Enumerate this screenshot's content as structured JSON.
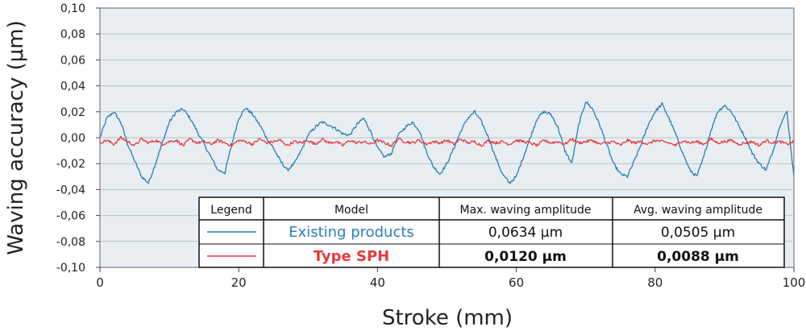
{
  "chart_data": {
    "type": "line",
    "xlabel": "Stroke (mm)",
    "ylabel": "Waving accuracy (μm)",
    "xlim": [
      0,
      100
    ],
    "ylim": [
      -0.1,
      0.1
    ],
    "x_ticks": [
      "0",
      "20",
      "40",
      "60",
      "80",
      "100"
    ],
    "y_ticks": [
      "0,10",
      "0,08",
      "0,06",
      "0,04",
      "0,02",
      "0,00",
      "-0,02",
      "-0,04",
      "-0,06",
      "-0,08",
      "-0,10"
    ],
    "grid": true,
    "series": [
      {
        "name": "Existing products",
        "color": "#2a7fb5",
        "x": [
          0,
          1,
          2,
          3,
          4,
          5,
          6,
          7,
          8,
          9,
          10,
          11,
          12,
          13,
          14,
          15,
          16,
          17,
          18,
          19,
          20,
          21,
          22,
          23,
          24,
          25,
          26,
          27,
          28,
          29,
          30,
          31,
          32,
          33,
          34,
          35,
          36,
          37,
          38,
          39,
          40,
          41,
          42,
          43,
          44,
          45,
          46,
          47,
          48,
          49,
          50,
          51,
          52,
          53,
          54,
          55,
          56,
          57,
          58,
          59,
          60,
          61,
          62,
          63,
          64,
          65,
          66,
          67,
          68,
          69,
          70,
          71,
          72,
          73,
          74,
          75,
          76,
          77,
          78,
          79,
          80,
          81,
          82,
          83,
          84,
          85,
          86,
          87,
          88,
          89,
          90,
          91,
          92,
          93,
          94,
          95,
          96,
          97,
          98,
          99,
          100
        ],
        "y": [
          0.0,
          0.015,
          0.02,
          0.012,
          -0.005,
          -0.018,
          -0.03,
          -0.035,
          -0.02,
          -0.004,
          0.012,
          0.02,
          0.022,
          0.015,
          0.005,
          -0.005,
          -0.015,
          -0.025,
          -0.027,
          -0.005,
          0.015,
          0.023,
          0.018,
          0.01,
          0.0,
          -0.008,
          -0.018,
          -0.025,
          -0.02,
          -0.01,
          0.002,
          0.008,
          0.012,
          0.01,
          0.007,
          0.003,
          0.002,
          0.01,
          0.015,
          0.005,
          -0.008,
          -0.015,
          -0.012,
          0.002,
          0.008,
          0.012,
          0.006,
          -0.01,
          -0.022,
          -0.028,
          -0.02,
          -0.008,
          0.005,
          0.015,
          0.02,
          0.012,
          0.0,
          -0.015,
          -0.028,
          -0.035,
          -0.03,
          -0.015,
          0.0,
          0.015,
          0.02,
          0.018,
          0.008,
          -0.01,
          -0.02,
          0.01,
          0.028,
          0.022,
          0.01,
          -0.005,
          -0.02,
          -0.028,
          -0.03,
          -0.018,
          -0.005,
          0.01,
          0.02,
          0.026,
          0.015,
          0.002,
          -0.012,
          -0.025,
          -0.03,
          -0.015,
          0.005,
          0.02,
          0.025,
          0.02,
          0.01,
          0.0,
          -0.012,
          -0.02,
          -0.025,
          -0.01,
          0.01,
          0.02,
          -0.03
        ]
      },
      {
        "name": "Type SPH",
        "color": "#e8393f",
        "x": [
          0,
          1,
          2,
          3,
          4,
          5,
          6,
          7,
          8,
          9,
          10,
          11,
          12,
          13,
          14,
          15,
          16,
          17,
          18,
          19,
          20,
          21,
          22,
          23,
          24,
          25,
          26,
          27,
          28,
          29,
          30,
          31,
          32,
          33,
          34,
          35,
          36,
          37,
          38,
          39,
          40,
          41,
          42,
          43,
          44,
          45,
          46,
          47,
          48,
          49,
          50,
          51,
          52,
          53,
          54,
          55,
          56,
          57,
          58,
          59,
          60,
          61,
          62,
          63,
          64,
          65,
          66,
          67,
          68,
          69,
          70,
          71,
          72,
          73,
          74,
          75,
          76,
          77,
          78,
          79,
          80,
          81,
          82,
          83,
          84,
          85,
          86,
          87,
          88,
          89,
          90,
          91,
          92,
          93,
          94,
          95,
          96,
          97,
          98,
          99,
          100
        ],
        "y": [
          -0.004,
          -0.002,
          -0.005,
          0.0,
          -0.003,
          -0.006,
          -0.001,
          -0.004,
          -0.002,
          -0.005,
          -0.003,
          -0.002,
          -0.006,
          -0.001,
          -0.004,
          -0.003,
          -0.005,
          -0.002,
          -0.004,
          -0.006,
          -0.002,
          -0.003,
          -0.005,
          -0.001,
          -0.004,
          -0.003,
          -0.002,
          -0.006,
          -0.003,
          -0.004,
          -0.002,
          -0.005,
          -0.001,
          -0.004,
          -0.003,
          -0.006,
          -0.002,
          -0.004,
          -0.003,
          -0.005,
          -0.002,
          -0.004,
          -0.006,
          -0.001,
          -0.003,
          -0.004,
          -0.002,
          -0.005,
          -0.003,
          -0.004,
          -0.002,
          -0.005,
          -0.001,
          -0.004,
          -0.003,
          -0.006,
          -0.002,
          -0.004,
          -0.003,
          -0.005,
          -0.002,
          -0.003,
          -0.004,
          -0.006,
          -0.002,
          -0.004,
          -0.003,
          -0.005,
          -0.001,
          -0.004,
          -0.003,
          -0.002,
          -0.005,
          -0.004,
          -0.003,
          -0.006,
          -0.002,
          -0.004,
          -0.003,
          -0.005,
          -0.002,
          -0.003,
          -0.004,
          -0.006,
          -0.002,
          -0.004,
          -0.003,
          -0.005,
          -0.001,
          -0.004,
          -0.003,
          -0.002,
          -0.005,
          -0.004,
          -0.003,
          -0.006,
          -0.002,
          -0.004,
          -0.003,
          -0.005,
          -0.003
        ]
      }
    ],
    "legend_table": {
      "headers": [
        "Legend",
        "Model",
        "Max. waving amplitude",
        "Avg. waving amplitude"
      ],
      "rows": [
        {
          "model": "Existing products",
          "max": "0,0634 μm",
          "avg": "0,0505 μm",
          "color": "#2a7fb5"
        },
        {
          "model": "Type SPH",
          "max": "0,0120 μm",
          "avg": "0,0088 μm",
          "color": "#e8393f"
        }
      ]
    }
  }
}
